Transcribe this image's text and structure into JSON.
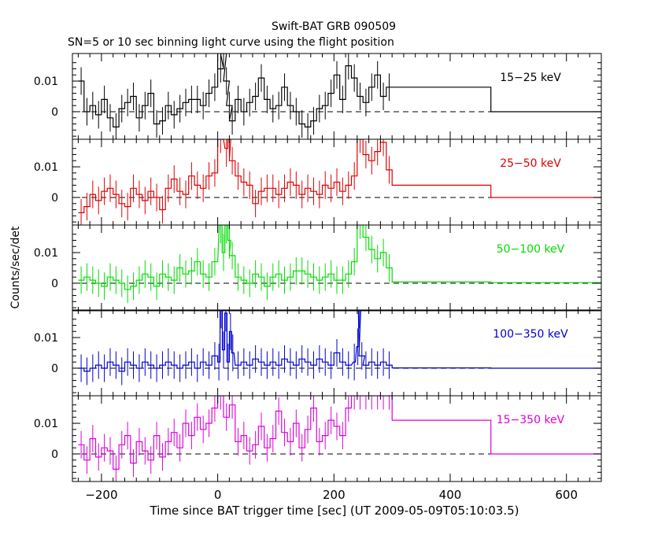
{
  "title": "Swift-BAT GRB 090509",
  "subtitle": "SN=5 or 10 sec binning light curve using the flight position",
  "chart_data": {
    "type": "line",
    "title": "Swift-BAT GRB 090509",
    "subtitle": "SN=5 or 10 sec binning light curve using the flight position",
    "xlabel": "Time since BAT trigger time [sec] (UT 2009-05-09T05:10:03.5)",
    "ylabel": "Counts/sec/det",
    "xlim": [
      -250,
      660
    ],
    "ylim": [
      -0.009,
      0.019
    ],
    "x_ticks": [
      -200,
      0,
      200,
      400,
      600
    ],
    "x_tick_labels": [
      "−200",
      "0",
      "200",
      "400",
      "600"
    ],
    "y_ticks": [
      0,
      0.01
    ],
    "y_tick_labels": [
      "0",
      "0.01"
    ],
    "zero_reference": "dashed",
    "panels": [
      {
        "name": "15−25 keV",
        "color": "#000000",
        "x": [
          -235,
          -225,
          -215,
          -205,
          -195,
          -185,
          -175,
          -165,
          -155,
          -145,
          -135,
          -125,
          -115,
          -105,
          -95,
          -85,
          -75,
          -65,
          -55,
          -45,
          -35,
          -25,
          -15,
          -5,
          0,
          5,
          10,
          15,
          20,
          25,
          35,
          45,
          55,
          65,
          75,
          85,
          95,
          105,
          115,
          125,
          135,
          145,
          155,
          165,
          175,
          185,
          195,
          205,
          215,
          225,
          235,
          245,
          255,
          265,
          275,
          285,
          295,
          385,
          565
        ],
        "y": [
          0.01,
          0.0,
          0.002,
          -0.001,
          0.004,
          -0.002,
          -0.005,
          0.001,
          0.003,
          0.005,
          -0.002,
          0.002,
          0.006,
          -0.004,
          -0.003,
          0.002,
          -0.001,
          0.001,
          0.003,
          0.004,
          0.004,
          0.002,
          0.006,
          0.008,
          0.019,
          0.014,
          0.019,
          0.01,
          0.002,
          -0.003,
          0.004,
          0.0,
          0.003,
          0.005,
          0.011,
          0.004,
          0.001,
          0.002,
          0.008,
          0.002,
          0.0,
          -0.004,
          -0.005,
          -0.003,
          0.001,
          0.002,
          0.006,
          0.012,
          0.004,
          0.015,
          0.011,
          0.005,
          0.003,
          0.008,
          0.012,
          0.005,
          0.008,
          0.008,
          0.0
        ],
        "width": [
          10,
          10,
          10,
          10,
          10,
          10,
          10,
          10,
          10,
          10,
          10,
          10,
          10,
          10,
          10,
          10,
          10,
          10,
          10,
          10,
          10,
          10,
          10,
          10,
          0,
          10,
          10,
          10,
          10,
          10,
          10,
          10,
          10,
          10,
          10,
          10,
          10,
          10,
          10,
          10,
          10,
          10,
          10,
          10,
          10,
          10,
          10,
          10,
          10,
          10,
          10,
          10,
          10,
          10,
          10,
          10,
          10,
          170,
          190
        ]
      },
      {
        "name": "25−50 keV",
        "color": "#dd0000",
        "x": [
          -235,
          -225,
          -215,
          -205,
          -195,
          -185,
          -175,
          -165,
          -155,
          -145,
          -135,
          -125,
          -115,
          -105,
          -95,
          -85,
          -75,
          -65,
          -55,
          -45,
          -35,
          -25,
          -15,
          -5,
          5,
          15,
          20,
          25,
          35,
          45,
          55,
          65,
          75,
          85,
          95,
          105,
          115,
          125,
          135,
          145,
          155,
          165,
          175,
          185,
          195,
          205,
          215,
          225,
          235,
          245,
          255,
          265,
          275,
          285,
          295,
          385,
          565
        ],
        "y": [
          -0.005,
          -0.003,
          0.001,
          -0.001,
          0.002,
          0.003,
          0.001,
          -0.002,
          -0.003,
          0.003,
          0.001,
          -0.001,
          0.002,
          0.0,
          -0.004,
          0.003,
          0.006,
          0.002,
          0.001,
          0.007,
          0.004,
          0.003,
          0.007,
          0.008,
          0.019,
          0.016,
          0.019,
          0.012,
          0.007,
          0.005,
          0.004,
          -0.002,
          0.002,
          0.003,
          0.003,
          0.001,
          0.003,
          0.005,
          0.004,
          0.001,
          0.003,
          0.002,
          0.001,
          0.004,
          0.003,
          0.005,
          0.002,
          0.004,
          0.007,
          0.019,
          0.014,
          0.012,
          0.015,
          0.018,
          0.009,
          0.004,
          0.0
        ],
        "width": [
          10,
          10,
          10,
          10,
          10,
          10,
          10,
          10,
          10,
          10,
          10,
          10,
          10,
          10,
          10,
          10,
          10,
          10,
          10,
          10,
          10,
          10,
          10,
          10,
          10,
          5,
          5,
          10,
          10,
          10,
          10,
          10,
          10,
          10,
          10,
          10,
          10,
          10,
          10,
          10,
          10,
          10,
          10,
          10,
          10,
          10,
          10,
          10,
          10,
          10,
          10,
          10,
          10,
          10,
          10,
          170,
          190
        ]
      },
      {
        "name": "50−100 keV",
        "color": "#00dd00",
        "x": [
          -235,
          -225,
          -215,
          -205,
          -195,
          -185,
          -175,
          -165,
          -155,
          -145,
          -135,
          -125,
          -115,
          -105,
          -95,
          -85,
          -75,
          -65,
          -55,
          -45,
          -35,
          -25,
          -15,
          -5,
          5,
          10,
          15,
          20,
          25,
          35,
          45,
          55,
          65,
          75,
          85,
          95,
          105,
          115,
          125,
          135,
          145,
          155,
          165,
          175,
          185,
          195,
          205,
          215,
          225,
          235,
          245,
          255,
          265,
          275,
          285,
          295,
          385,
          565
        ],
        "y": [
          0.001,
          0.002,
          0.001,
          0.0,
          -0.001,
          0.002,
          0.001,
          0.0,
          -0.002,
          -0.001,
          0.001,
          0.003,
          0.002,
          -0.001,
          0.003,
          0.002,
          0.001,
          0.005,
          0.003,
          0.004,
          0.007,
          0.003,
          0.002,
          0.007,
          0.019,
          0.01,
          0.019,
          0.014,
          0.009,
          0.002,
          0.001,
          0.0,
          0.003,
          0.002,
          -0.001,
          0.002,
          0.003,
          0.001,
          0.002,
          0.004,
          0.004,
          0.003,
          0.002,
          0.001,
          0.002,
          0.003,
          0.001,
          0.001,
          0.003,
          0.007,
          0.019,
          0.015,
          0.011,
          0.008,
          0.01,
          0.005,
          0.0004,
          0.0002
        ],
        "width": [
          10,
          10,
          10,
          10,
          10,
          10,
          10,
          10,
          10,
          10,
          10,
          10,
          10,
          10,
          10,
          10,
          10,
          10,
          10,
          10,
          10,
          10,
          10,
          10,
          5,
          5,
          5,
          5,
          10,
          10,
          10,
          10,
          10,
          10,
          10,
          10,
          10,
          10,
          10,
          10,
          10,
          10,
          10,
          10,
          10,
          10,
          10,
          10,
          10,
          10,
          10,
          10,
          10,
          10,
          10,
          10,
          170,
          190
        ]
      },
      {
        "name": "100−350 keV",
        "color": "#0000cc",
        "x": [
          -235,
          -225,
          -215,
          -205,
          -195,
          -185,
          -175,
          -165,
          -155,
          -145,
          -135,
          -125,
          -115,
          -105,
          -95,
          -85,
          -75,
          -65,
          -55,
          -45,
          -35,
          -25,
          -15,
          -5,
          2,
          6,
          10,
          14,
          18,
          22,
          26,
          35,
          45,
          55,
          65,
          75,
          85,
          95,
          105,
          115,
          125,
          135,
          145,
          155,
          165,
          175,
          185,
          195,
          205,
          215,
          225,
          235,
          241,
          244,
          248,
          255,
          265,
          275,
          285,
          295,
          385,
          565
        ],
        "y": [
          0.0,
          -0.001,
          0.0,
          0.001,
          0.0,
          0.002,
          0.001,
          -0.001,
          0.002,
          0.001,
          0.0,
          0.002,
          0.001,
          0.0,
          0.001,
          0.002,
          0.001,
          0.0,
          0.001,
          0.002,
          0.0,
          0.002,
          0.001,
          0.004,
          0.002,
          0.019,
          0.006,
          0.018,
          0.002,
          0.012,
          0.005,
          0.001,
          0.002,
          0.001,
          0.003,
          0.002,
          0.001,
          0.002,
          0.001,
          0.003,
          0.002,
          0.001,
          0.003,
          0.002,
          0.001,
          0.003,
          0.002,
          0.001,
          0.005,
          0.002,
          0.001,
          0.002,
          0.007,
          0.019,
          0.004,
          0.001,
          0.002,
          0.001,
          0.002,
          0.001,
          0.0001,
          0.0
        ],
        "width": [
          10,
          10,
          10,
          10,
          10,
          10,
          10,
          10,
          10,
          10,
          10,
          10,
          10,
          10,
          10,
          10,
          10,
          10,
          10,
          10,
          10,
          10,
          10,
          10,
          4,
          4,
          4,
          4,
          4,
          4,
          4,
          10,
          10,
          10,
          10,
          10,
          10,
          10,
          10,
          10,
          10,
          10,
          10,
          10,
          10,
          10,
          10,
          10,
          10,
          10,
          10,
          4,
          4,
          4,
          10,
          10,
          10,
          10,
          10,
          10,
          170,
          190
        ]
      },
      {
        "name": "15−350 keV",
        "color": "#dd00dd",
        "x": [
          -235,
          -225,
          -215,
          -205,
          -195,
          -185,
          -175,
          -165,
          -155,
          -145,
          -135,
          -125,
          -115,
          -105,
          -95,
          -85,
          -75,
          -65,
          -55,
          -45,
          -35,
          -25,
          -15,
          -5,
          5,
          15,
          25,
          35,
          45,
          55,
          65,
          75,
          85,
          95,
          105,
          115,
          125,
          135,
          145,
          155,
          165,
          175,
          185,
          195,
          205,
          215,
          225,
          235,
          245,
          255,
          265,
          275,
          285,
          295,
          385,
          565
        ],
        "y": [
          0.003,
          -0.002,
          0.005,
          -0.001,
          0.002,
          0.001,
          -0.005,
          0.003,
          0.006,
          -0.003,
          0.004,
          0.001,
          -0.002,
          0.006,
          -0.001,
          0.004,
          0.007,
          0.002,
          0.01,
          0.006,
          0.012,
          0.008,
          0.01,
          0.015,
          0.019,
          0.012,
          0.016,
          0.004,
          0.006,
          0.001,
          0.003,
          0.009,
          0.002,
          0.005,
          0.014,
          0.007,
          0.004,
          0.01,
          0.002,
          0.008,
          0.015,
          0.004,
          0.006,
          0.011,
          0.009,
          0.006,
          0.015,
          0.019,
          0.019,
          0.019,
          0.019,
          0.019,
          0.019,
          0.019,
          0.011,
          0.0
        ],
        "width": [
          10,
          10,
          10,
          10,
          10,
          10,
          10,
          10,
          10,
          10,
          10,
          10,
          10,
          10,
          10,
          10,
          10,
          10,
          10,
          10,
          10,
          10,
          10,
          10,
          10,
          10,
          10,
          10,
          10,
          10,
          10,
          10,
          10,
          10,
          10,
          10,
          10,
          10,
          10,
          10,
          10,
          10,
          10,
          10,
          10,
          10,
          10,
          10,
          10,
          10,
          10,
          10,
          10,
          10,
          170,
          190
        ]
      }
    ]
  }
}
